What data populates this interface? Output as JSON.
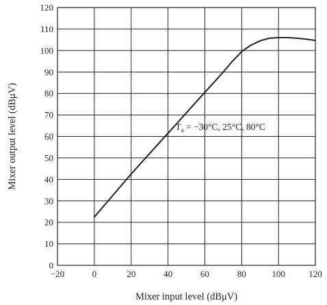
{
  "chart_data": {
    "type": "line",
    "title": "",
    "xlabel": "Mixer input level  (dBμV)",
    "ylabel": "Mixer output level  (dBμV)",
    "xlim": [
      -20,
      120
    ],
    "ylim": [
      0,
      120
    ],
    "x_ticks": [
      -20,
      0,
      20,
      40,
      60,
      80,
      100,
      120
    ],
    "y_ticks": [
      0,
      10,
      20,
      30,
      40,
      50,
      60,
      70,
      80,
      90,
      100,
      110,
      120
    ],
    "x_tick_labels": [
      "−20",
      "0",
      "20",
      "40",
      "60",
      "80",
      "100",
      "120"
    ],
    "y_tick_labels": [
      "0",
      "10",
      "20",
      "30",
      "40",
      "50",
      "60",
      "70",
      "80",
      "90",
      "100",
      "110",
      "120"
    ],
    "grid": true,
    "series": [
      {
        "x": [
          0,
          10,
          20,
          30,
          40,
          50,
          60,
          70,
          75,
          80,
          85,
          90,
          95,
          100,
          105,
          110,
          115,
          120
        ],
        "y": [
          22.5,
          32.5,
          42.5,
          52,
          61.5,
          71,
          80.5,
          90,
          95,
          99.5,
          102.5,
          104.5,
          105.7,
          106,
          106,
          105.7,
          105.3,
          104.7
        ]
      }
    ],
    "annotation": {
      "prefix": "T",
      "subscript": "a",
      "text": " = −30°C, 25°C, 80°C",
      "x": 44,
      "y": 63
    }
  }
}
